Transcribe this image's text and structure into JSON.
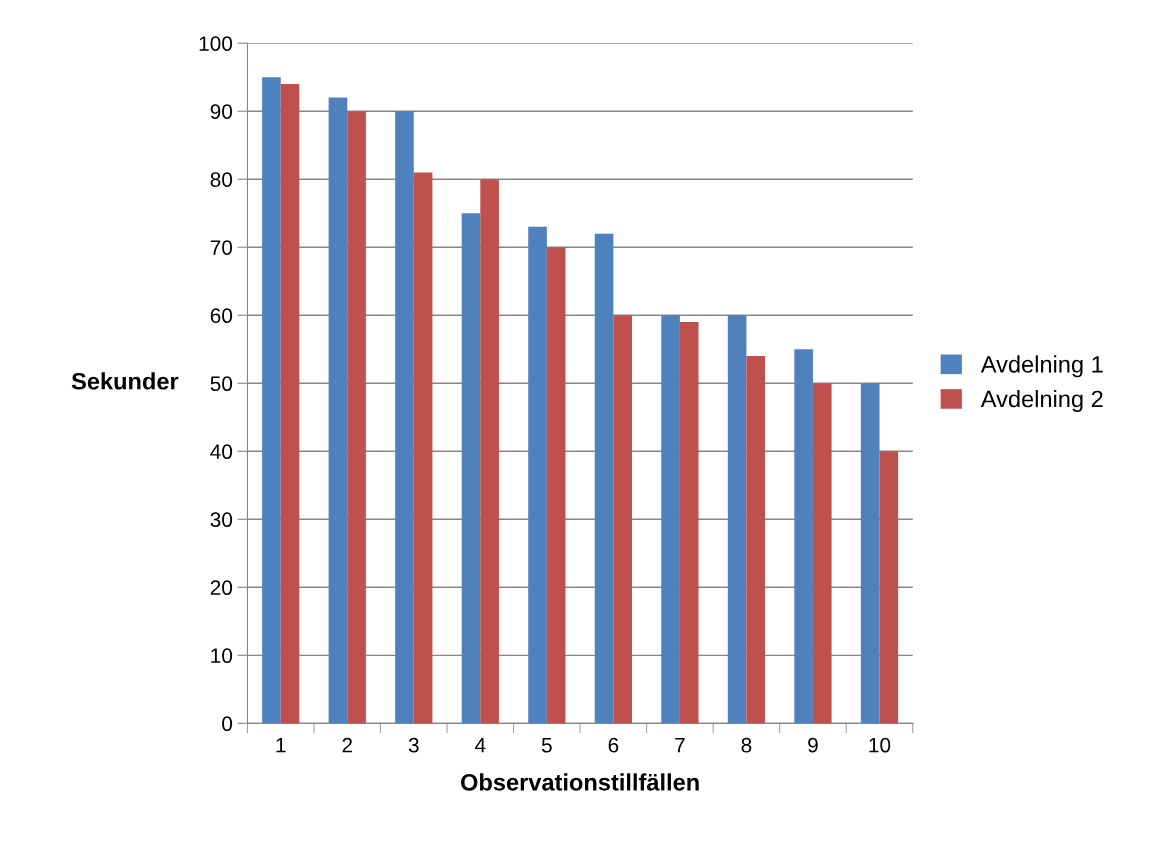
{
  "chart_data": {
    "type": "bar",
    "xlabel": "Observationstillfällen",
    "ylabel": "Sekunder",
    "categories": [
      "1",
      "2",
      "3",
      "4",
      "5",
      "6",
      "7",
      "8",
      "9",
      "10"
    ],
    "series": [
      {
        "name": "Avdelning 1",
        "color": "#4f81bd",
        "values": [
          95,
          92,
          90,
          75,
          73,
          72,
          60,
          60,
          55,
          50
        ]
      },
      {
        "name": "Avdelning 2",
        "color": "#c0504d",
        "values": [
          94,
          90,
          81,
          80,
          70,
          60,
          59,
          54,
          50,
          40
        ]
      }
    ],
    "ylim": [
      0,
      100
    ],
    "yticks": [
      0,
      10,
      20,
      30,
      40,
      50,
      60,
      70,
      80,
      90,
      100
    ],
    "grid": "y",
    "legend": "right"
  }
}
